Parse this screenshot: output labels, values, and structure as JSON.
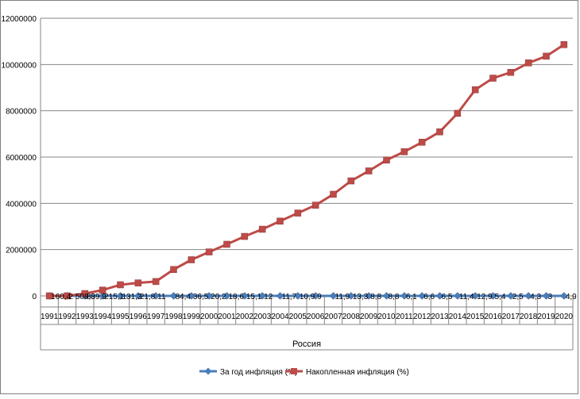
{
  "chart_data": {
    "type": "line",
    "title": "",
    "ylabel": "",
    "xlabel": "Россия",
    "ylim": [
      0,
      12000000
    ],
    "y_ticks": [
      "0",
      "2000000",
      "4000000",
      "6000000",
      "8000000",
      "10000000",
      "12000000"
    ],
    "categories": [
      "1991",
      "1992",
      "1993",
      "1994",
      "1995",
      "1996",
      "1997",
      "1998",
      "1999",
      "2000",
      "2001",
      "2002",
      "2003",
      "2004",
      "2005",
      "2006",
      "2007",
      "2008",
      "2009",
      "2010",
      "2011",
      "2012",
      "2013",
      "2014",
      "2015",
      "2016",
      "2017",
      "2018",
      "2019",
      "2020"
    ],
    "grid": true,
    "legend_position": "bottom",
    "series": [
      {
        "name": "За год инфляция (%)",
        "color": "#4a7ebb",
        "marker": "diamond",
        "values": [
          160.4,
          2508.8,
          839.9,
          215.1,
          131.3,
          21.8,
          11,
          84.4,
          36.5,
          20.2,
          18.6,
          15.1,
          12,
          11.7,
          10.9,
          9,
          11.9,
          13.3,
          8.8,
          8.8,
          6.1,
          6.6,
          6.5,
          11.4,
          12.9,
          5.4,
          2.5,
          4.3,
          3,
          4.9
        ],
        "data_labels": [
          "160,4",
          "2 508,8",
          "839,9",
          "215,1",
          "131,3",
          "21,8",
          "11",
          "84,4",
          "36,5",
          "20,2",
          "18,6",
          "15,1",
          "12",
          "11,7",
          "10,9",
          "9",
          "11,9",
          "13,3",
          "8,8",
          "8,8",
          "6,1",
          "6,6",
          "6,5",
          "11,4",
          "12,9",
          "5,4",
          "2,5",
          "4,3",
          "3",
          "4,9"
        ]
      },
      {
        "name": "Накопленная инфляция (%)",
        "color": "#be4b48",
        "marker": "square",
        "values": [
          0,
          0,
          100000,
          250000,
          480000,
          560000,
          620000,
          1140000,
          1560000,
          1900000,
          2230000,
          2570000,
          2880000,
          3230000,
          3580000,
          3920000,
          4390000,
          4970000,
          5400000,
          5870000,
          6230000,
          6640000,
          7090000,
          7890000,
          8910000,
          9410000,
          9660000,
          10070000,
          10360000,
          10860000
        ]
      }
    ]
  }
}
